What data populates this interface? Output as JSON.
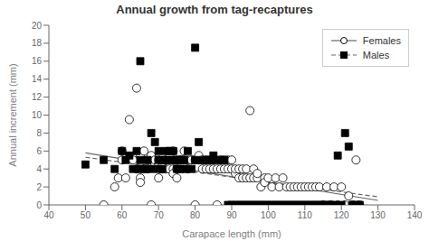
{
  "chart_data": {
    "type": "scatter",
    "title": "Annual growth from tag-recaptures",
    "xlabel": "Carapace length (mm)",
    "ylabel": "Annual increment (mm)",
    "xlim": [
      40,
      140
    ],
    "ylim": [
      0,
      20
    ],
    "xticks": [
      40,
      50,
      60,
      70,
      80,
      90,
      100,
      110,
      120,
      130,
      140
    ],
    "yticks": [
      0,
      2,
      4,
      6,
      8,
      10,
      12,
      14,
      16,
      18,
      20
    ],
    "grid": false,
    "legend": "upper right",
    "series": [
      {
        "name": "Females",
        "color": "#000000",
        "marker": "open_circle",
        "x": [
          55,
          58,
          59,
          60,
          60,
          61,
          62,
          63,
          64,
          64,
          65,
          65,
          65,
          66,
          66,
          67,
          67,
          68,
          68,
          68,
          69,
          69,
          70,
          70,
          70,
          71,
          71,
          72,
          72,
          73,
          73,
          74,
          74,
          74,
          75,
          75,
          75,
          76,
          76,
          77,
          77,
          78,
          78,
          79,
          79,
          80,
          80,
          81,
          81,
          82,
          82,
          83,
          83,
          84,
          84,
          85,
          85,
          85,
          86,
          86,
          87,
          87,
          88,
          88,
          89,
          89,
          90,
          90,
          91,
          91,
          92,
          92,
          93,
          93,
          94,
          94,
          95,
          95,
          96,
          96,
          97,
          97,
          98,
          99,
          99,
          100,
          101,
          102,
          103,
          104,
          105,
          106,
          107,
          108,
          109,
          110,
          111,
          112,
          113,
          114,
          115,
          116,
          117,
          118,
          119,
          120,
          121,
          122,
          123,
          124,
          125
        ],
        "values": [
          0,
          2,
          3,
          5,
          6,
          3,
          9.5,
          5,
          13,
          4,
          5.5,
          3,
          2.5,
          4,
          6,
          5,
          4,
          5,
          5.5,
          0,
          4.5,
          5,
          5,
          4.5,
          3,
          4,
          4.5,
          4,
          5,
          4,
          5.5,
          4,
          3.5,
          6,
          5,
          4,
          3,
          5,
          5,
          5,
          6,
          5,
          4,
          5,
          5,
          5,
          0,
          5,
          5.5,
          4,
          5,
          5,
          4,
          5,
          4,
          5,
          4,
          5,
          0,
          4,
          5,
          4,
          5,
          4,
          5,
          4,
          5,
          4,
          3.5,
          4,
          3,
          4,
          3,
          4,
          3,
          4,
          10.5,
          3,
          3,
          4,
          3,
          3.5,
          2,
          3,
          2.5,
          3,
          2,
          3,
          2,
          3,
          2,
          2,
          2,
          2,
          2,
          2,
          2,
          2,
          2,
          2,
          0,
          2,
          0,
          2,
          0,
          2,
          0,
          1,
          0,
          5,
          0
        ],
        "line": {
          "x": [
            50,
            130
          ],
          "values": [
            5.8,
            0.5
          ],
          "color": "#666666",
          "line_style": "solid"
        }
      },
      {
        "name": "Males",
        "color": "#000000",
        "marker": "square",
        "x": [
          50,
          55,
          58,
          60,
          61,
          62,
          63,
          64,
          65,
          65,
          65,
          66,
          67,
          68,
          68,
          69,
          70,
          70,
          70,
          71,
          71,
          72,
          72,
          73,
          73,
          74,
          74,
          75,
          75,
          76,
          76,
          77,
          77,
          78,
          79,
          80,
          80,
          81,
          82,
          83,
          84,
          85,
          86,
          87,
          88,
          89,
          90,
          91,
          92,
          93,
          94,
          95,
          96,
          97,
          98,
          99,
          100,
          101,
          102,
          103,
          104,
          105,
          106,
          107,
          108,
          109,
          110,
          111,
          112,
          113,
          114,
          115,
          116,
          117,
          118,
          119,
          120,
          121,
          122,
          123,
          124,
          125
        ],
        "values": [
          4.5,
          5,
          4,
          6,
          5,
          5.5,
          4,
          6,
          16,
          4,
          5,
          4,
          5,
          8,
          4,
          7,
          5,
          6,
          4,
          5,
          4,
          6,
          5,
          6,
          5,
          6,
          5,
          5,
          4,
          4,
          5,
          4,
          5,
          6,
          4,
          17.5,
          5,
          7,
          5,
          5,
          5,
          5.5,
          5,
          5,
          5,
          0,
          0,
          0,
          0,
          0,
          0,
          0,
          0,
          0,
          0,
          0,
          0,
          0,
          0,
          0,
          0,
          0,
          0,
          0,
          0,
          0,
          0,
          0,
          0,
          0,
          0,
          0,
          0,
          0,
          0,
          5.5,
          0,
          8,
          6.5,
          0,
          0,
          0
        ],
        "line": {
          "x": [
            50,
            130
          ],
          "values": [
            5.3,
            0.9
          ],
          "color": "#666666",
          "line_style": "dashed"
        }
      }
    ]
  }
}
